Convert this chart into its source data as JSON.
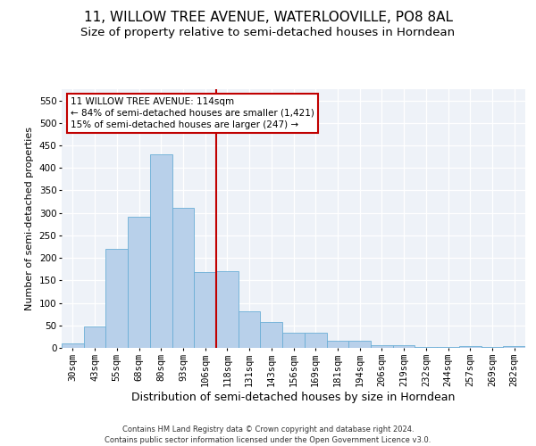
{
  "title": "11, WILLOW TREE AVENUE, WATERLOOVILLE, PO8 8AL",
  "subtitle": "Size of property relative to semi-detached houses in Horndean",
  "xlabel": "Distribution of semi-detached houses by size in Horndean",
  "ylabel": "Number of semi-detached properties",
  "categories": [
    "30sqm",
    "43sqm",
    "55sqm",
    "68sqm",
    "80sqm",
    "93sqm",
    "106sqm",
    "118sqm",
    "131sqm",
    "143sqm",
    "156sqm",
    "169sqm",
    "181sqm",
    "194sqm",
    "206sqm",
    "219sqm",
    "232sqm",
    "244sqm",
    "257sqm",
    "269sqm",
    "282sqm"
  ],
  "values": [
    10,
    48,
    221,
    291,
    430,
    312,
    168,
    170,
    82,
    57,
    33,
    33,
    15,
    15,
    5,
    5,
    2,
    2,
    3,
    1,
    3
  ],
  "bar_color": "#b8d0ea",
  "bar_edge_color": "#6baed6",
  "vline_x_index": 6.5,
  "vline_color": "#c00000",
  "annotation_text": "11 WILLOW TREE AVENUE: 114sqm\n← 84% of semi-detached houses are smaller (1,421)\n15% of semi-detached houses are larger (247) →",
  "annotation_box_color": "#ffffff",
  "annotation_box_edge_color": "#c00000",
  "ylim": [
    0,
    575
  ],
  "yticks": [
    0,
    50,
    100,
    150,
    200,
    250,
    300,
    350,
    400,
    450,
    500,
    550
  ],
  "footer": "Contains HM Land Registry data © Crown copyright and database right 2024.\nContains public sector information licensed under the Open Government Licence v3.0.",
  "title_fontsize": 11,
  "subtitle_fontsize": 9.5,
  "xlabel_fontsize": 9,
  "ylabel_fontsize": 8,
  "tick_fontsize": 7.5,
  "annotation_fontsize": 7.5,
  "footer_fontsize": 6,
  "bg_color": "#eef2f8"
}
